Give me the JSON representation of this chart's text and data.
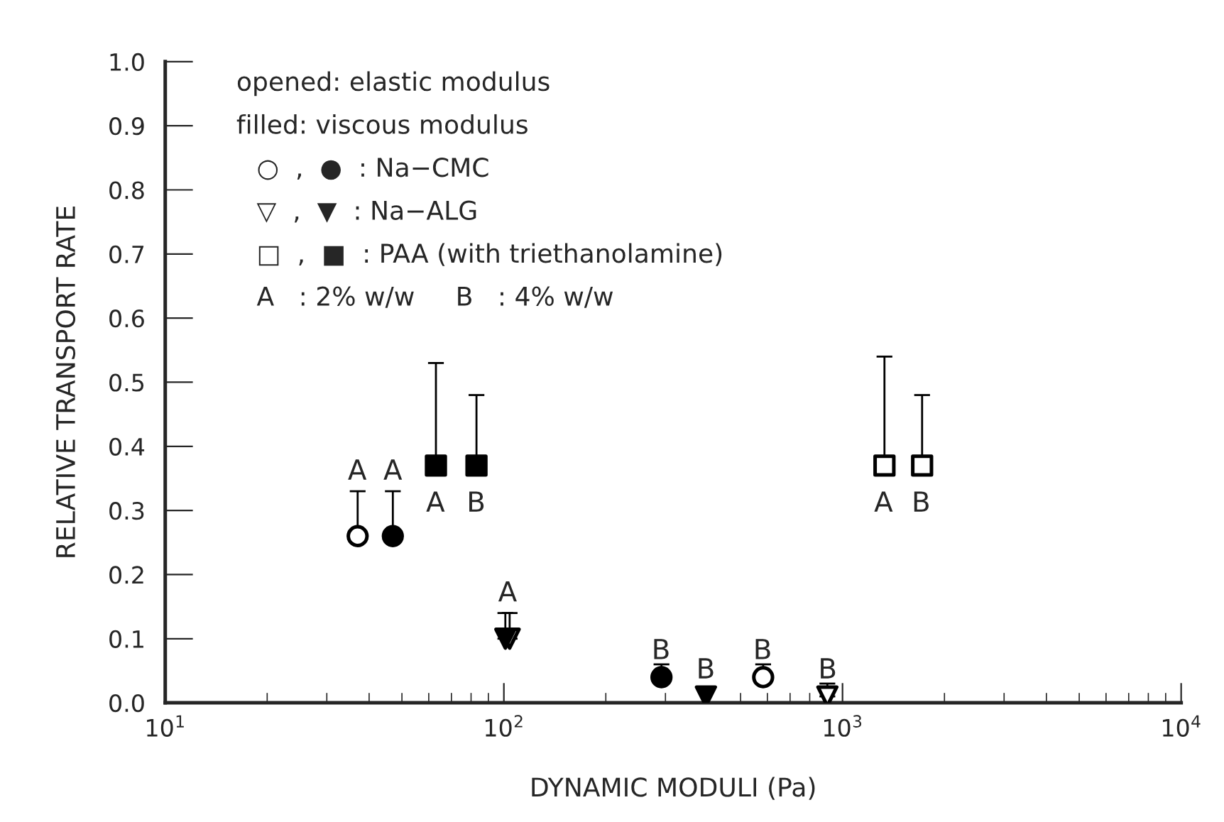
{
  "chart_data": {
    "type": "scatter",
    "xlabel": "DYNAMIC MODULI (Pa)",
    "ylabel": "RELATIVE TRANSPORT RATE",
    "log": "x",
    "xlim": [
      10,
      10000
    ],
    "xticks": [
      {
        "value": 10,
        "label": "10$^{1}$"
      },
      {
        "value": 100,
        "label": "10$^{2}$"
      },
      {
        "value": 1000,
        "label": "10$^{3}$"
      },
      {
        "value": 10000,
        "label": "10$^{4}$"
      }
    ],
    "ylim": [
      0,
      1.0
    ],
    "yticks": [
      {
        "value": 0,
        "label": "0.0"
      },
      {
        "value": 0.1,
        "label": "0.1"
      },
      {
        "value": 0.2,
        "label": "0.2"
      },
      {
        "value": 0.3,
        "label": "0.3"
      },
      {
        "value": 0.4,
        "label": "0.4"
      },
      {
        "value": 0.5,
        "label": "0.5"
      },
      {
        "value": 0.6,
        "label": "0.6"
      },
      {
        "value": 0.7,
        "label": "0.7"
      },
      {
        "value": 0.8,
        "label": "0.8"
      },
      {
        "value": 0.9,
        "label": "0.9"
      },
      {
        "value": 1.0,
        "label": "1.0"
      }
    ],
    "grid": false,
    "legend": false,
    "series": [
      {
        "marker": "circle",
        "color": "#ffffff",
        "x": [
          37,
          583
        ],
        "values": [
          0.26,
          0.04
        ],
        "errors": [
          [
            0.26,
            0.33
          ],
          [
            0.04,
            0.06
          ]
        ]
      },
      {
        "marker": "circle",
        "color": "#000000",
        "x": [
          47,
          292
        ],
        "values": [
          0.26,
          0.04
        ],
        "errors": [
          [
            0.26,
            0.33
          ],
          [
            0.04,
            0.06
          ]
        ]
      },
      {
        "marker": "triangle",
        "color": "#ffffff",
        "x": [
          104,
          902
        ],
        "values": [
          0.1,
          0.01
        ],
        "errors": [
          [
            0.1,
            0.14
          ],
          [
            0.01,
            0.03
          ]
        ]
      },
      {
        "marker": "triangle",
        "color": "#000000",
        "x": [
          101,
          395
        ],
        "values": [
          0.1,
          0.01
        ],
        "errors": [
          [
            0.1,
            0.14
          ],
          null
        ]
      },
      {
        "marker": "square",
        "color": "#ffffff",
        "x": [
          1330,
          1718
        ],
        "values": [
          0.37,
          0.37
        ],
        "errors": [
          [
            0.37,
            0.54
          ],
          [
            0.37,
            0.48
          ]
        ]
      },
      {
        "marker": "square",
        "color": "#000000",
        "x": [
          63,
          83
        ],
        "values": [
          0.37,
          0.37
        ],
        "errors": [
          [
            0.37,
            0.53
          ],
          [
            0.37,
            0.48
          ]
        ]
      }
    ],
    "annotations": [
      "opened: elastic modulus",
      "filled: viscous modulus",
      "○  ,  ●  : Na−CMC",
      "▽  ,  ▼  : Na−ALG",
      "□  ,  ■  : PAA (with triethanolamine)",
      "A   : 2% w/w     B   : 4% w/w",
      "A",
      "A",
      "A",
      "B",
      "A",
      "B",
      "B",
      "B",
      "B",
      "A",
      "B"
    ]
  }
}
